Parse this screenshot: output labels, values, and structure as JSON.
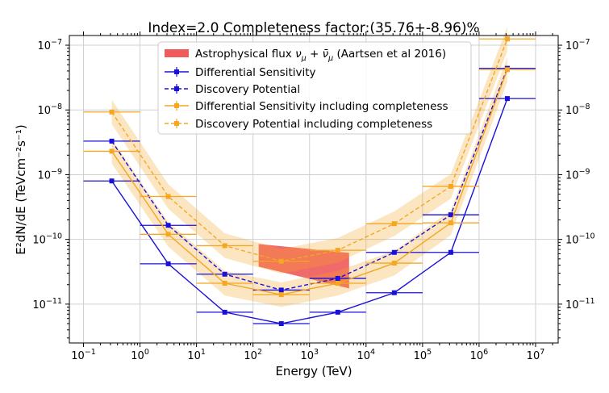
{
  "chart_data": {
    "type": "line",
    "title": "Index=2.0 Completeness factor:(35.76+-8.96)%",
    "xlabel": "Energy (TeV)",
    "ylabel": "E²dN/dE (TeVcm⁻²s⁻¹)",
    "x_scale": "log",
    "y_scale": "log",
    "xlim_exp": [
      -1.25,
      7.4
    ],
    "ylim_exp": [
      -11.6,
      7.35
    ],
    "ylim_exp_note": "",
    "x_ticks": [
      {
        "base": "10",
        "exp": "−1",
        "e": -1
      },
      {
        "base": "10",
        "exp": "0",
        "e": 0
      },
      {
        "base": "10",
        "exp": "1",
        "e": 1
      },
      {
        "base": "10",
        "exp": "2",
        "e": 2
      },
      {
        "base": "10",
        "exp": "3",
        "e": 3
      },
      {
        "base": "10",
        "exp": "4",
        "e": 4
      },
      {
        "base": "10",
        "exp": "5",
        "e": 5
      },
      {
        "base": "10",
        "exp": "6",
        "e": 6
      },
      {
        "base": "10",
        "exp": "7",
        "e": 7
      }
    ],
    "y_ticks": [
      {
        "base": "10",
        "exp": "−11",
        "e": -11
      },
      {
        "base": "10",
        "exp": "−10",
        "e": -10
      },
      {
        "base": "10",
        "exp": "−9",
        "e": -9
      },
      {
        "base": "10",
        "exp": "−8",
        "e": -8
      },
      {
        "base": "10",
        "exp": "−7",
        "e": -7
      }
    ],
    "grid": true,
    "legend_position": "top-center",
    "bins_exp": [
      [
        -1,
        0
      ],
      [
        0,
        1
      ],
      [
        1,
        2
      ],
      [
        2,
        3
      ],
      [
        3,
        4
      ],
      [
        4,
        5
      ],
      [
        5,
        6
      ],
      [
        6,
        7
      ]
    ],
    "x_centers_exp": [
      -0.5,
      0.5,
      1.5,
      2.5,
      3.5,
      4.5,
      5.5,
      6.5
    ],
    "series": [
      {
        "name": "Differential Sensitivity",
        "color": "#1a10d6",
        "style": "solid",
        "band": false,
        "values": [
          8e-10,
          4.2e-11,
          7.5e-12,
          5e-12,
          7.5e-12,
          1.5e-11,
          6.3e-11,
          1.5e-08
        ]
      },
      {
        "name": "Discovery Potential",
        "color": "#1a10d6",
        "style": "dashed",
        "band": false,
        "values": [
          3.3e-09,
          1.65e-10,
          2.9e-11,
          1.65e-11,
          2.5e-11,
          6.3e-11,
          2.4e-10,
          4.4e-08
        ]
      },
      {
        "name": "Differential Sensitivity including completeness",
        "color": "#f5a623",
        "style": "solid",
        "band": true,
        "values": [
          2.3e-09,
          1.2e-10,
          2.1e-11,
          1.4e-11,
          2.1e-11,
          4.3e-11,
          1.8e-10,
          4.2e-08
        ]
      },
      {
        "name": "Discovery Potential including completeness",
        "color": "#f5a623",
        "style": "dashed",
        "band": true,
        "values": [
          9.3e-09,
          4.6e-10,
          8e-11,
          4.6e-11,
          6.8e-11,
          1.75e-10,
          6.6e-10,
          1.25e-07
        ]
      }
    ],
    "astro_band": {
      "name": "Astrophysical flux νμ + ν̄μ (Aartsen et al 2016)",
      "label_main": "Astrophysical flux ",
      "label_nu": "ν",
      "label_mu": "μ",
      "label_plus": " + ",
      "label_nubar": "ν̄",
      "label_mu2": "μ",
      "label_ref": " (Aartsen et al 2016)",
      "color": "#f05a5a",
      "x_range_exp": [
        2.1,
        3.7
      ],
      "upper": [
        8.5e-11,
        6.2e-11
      ],
      "lower": [
        3.8e-11,
        1.75e-11
      ]
    }
  }
}
